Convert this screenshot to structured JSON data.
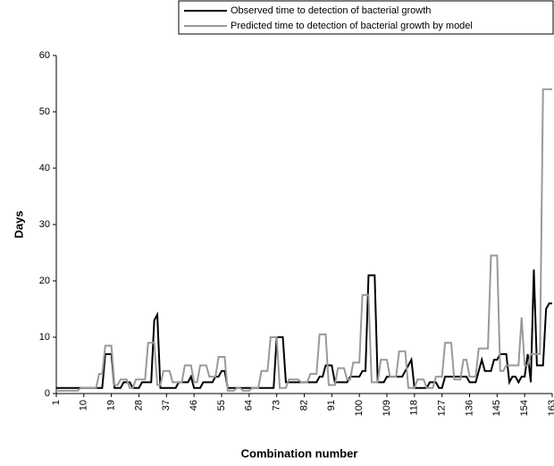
{
  "chart_data": {
    "type": "line",
    "y_label": "Days",
    "x_label": "Combination number",
    "x": [
      1,
      2,
      3,
      4,
      5,
      6,
      7,
      8,
      9,
      10,
      11,
      12,
      13,
      14,
      15,
      16,
      17,
      18,
      19,
      20,
      21,
      22,
      23,
      24,
      25,
      26,
      27,
      28,
      29,
      30,
      31,
      32,
      33,
      34,
      35,
      36,
      37,
      38,
      39,
      40,
      41,
      42,
      43,
      44,
      45,
      46,
      47,
      48,
      49,
      50,
      51,
      52,
      53,
      54,
      55,
      56,
      57,
      58,
      59,
      60,
      61,
      62,
      63,
      64,
      65,
      66,
      67,
      68,
      69,
      70,
      71,
      72,
      73,
      74,
      75,
      76,
      77,
      78,
      79,
      80,
      81,
      82,
      83,
      84,
      85,
      86,
      87,
      88,
      89,
      90,
      91,
      92,
      93,
      94,
      95,
      96,
      97,
      98,
      99,
      100,
      101,
      102,
      103,
      104,
      105,
      106,
      107,
      108,
      109,
      110,
      111,
      112,
      113,
      114,
      115,
      116,
      117,
      118,
      119,
      120,
      121,
      122,
      123,
      124,
      125,
      126,
      127,
      128,
      129,
      130,
      131,
      132,
      133,
      134,
      135,
      136,
      137,
      138,
      139,
      140,
      141,
      142,
      143,
      144,
      145,
      146,
      147,
      148,
      149,
      150,
      151,
      152,
      153,
      154,
      155,
      156,
      157,
      158,
      159,
      160,
      161,
      162,
      163
    ],
    "series": [
      {
        "name": "Observed time to detection of bacterial growth",
        "color": "#000000",
        "values": [
          1,
          1,
          1,
          1,
          1,
          1,
          1,
          1,
          1,
          1,
          1,
          1,
          1,
          1,
          1,
          1,
          7,
          7,
          7,
          1,
          1,
          1,
          2,
          2,
          2,
          1,
          1,
          1,
          2,
          2,
          2,
          2,
          13,
          14,
          1,
          1,
          1,
          1,
          1,
          1,
          2,
          2,
          2,
          2,
          3,
          1,
          1,
          1,
          2,
          2,
          2,
          2,
          3,
          3,
          4,
          4,
          1,
          1,
          1,
          1,
          1,
          1,
          1,
          1,
          1,
          1,
          1,
          1,
          1,
          1,
          1,
          1,
          10,
          10,
          10,
          2,
          2,
          2,
          2,
          2,
          2,
          2,
          2,
          2,
          2,
          2,
          3,
          3,
          5,
          5,
          5,
          2,
          2,
          2,
          2,
          2,
          3,
          3,
          3,
          3,
          4,
          4,
          21,
          21,
          21,
          2,
          2,
          2,
          3,
          3,
          3,
          3,
          3,
          3,
          4,
          5,
          6,
          1,
          1,
          1,
          1,
          1,
          2,
          2,
          2,
          1,
          1,
          3,
          3,
          3,
          3,
          3,
          3,
          3,
          3,
          2,
          2,
          2,
          4,
          6,
          4,
          4,
          4,
          6,
          6,
          7,
          7,
          7,
          2,
          3,
          3,
          2,
          3,
          3,
          7,
          2,
          22,
          5,
          5,
          5,
          15,
          16,
          16
        ]
      },
      {
        "name": "Predicted time to detection of bacterial growth by model",
        "color": "#999999",
        "values": [
          0.5,
          0.5,
          0.5,
          0.5,
          0.5,
          0.5,
          0.5,
          0.5,
          1,
          1,
          1,
          1,
          1,
          1,
          3.5,
          3.5,
          8.5,
          8.5,
          8.5,
          1.5,
          1.5,
          2.5,
          2.5,
          2.5,
          1,
          1,
          2.5,
          2.5,
          2.5,
          2.5,
          9,
          9,
          9,
          1.5,
          1.5,
          4,
          4,
          4,
          2,
          2,
          2,
          2,
          5,
          5,
          5,
          2,
          2,
          5,
          5,
          5,
          3,
          3,
          3,
          6.5,
          6.5,
          6.5,
          0.5,
          0.5,
          0.5,
          1,
          1,
          0.5,
          0.5,
          0.5,
          1,
          1,
          1,
          4,
          4,
          4,
          10,
          10,
          10,
          1,
          1,
          1,
          2.5,
          2.5,
          2.5,
          2.5,
          2,
          2,
          2,
          3.5,
          3.5,
          3.5,
          10.5,
          10.5,
          10.5,
          1.5,
          1.5,
          1.5,
          4.5,
          4.5,
          4.5,
          2.5,
          2.5,
          5.5,
          5.5,
          5.5,
          17.5,
          17.5,
          17.5,
          2,
          2,
          2,
          6,
          6,
          6,
          3,
          3,
          3,
          7.5,
          7.5,
          7.5,
          1,
          1,
          1,
          2.5,
          2.5,
          2.5,
          1,
          1,
          1,
          3,
          3,
          3,
          9,
          9,
          9,
          2.5,
          2.5,
          2.5,
          6,
          6,
          3,
          3,
          3,
          8,
          8,
          8,
          8,
          24.5,
          24.5,
          24.5,
          4,
          4,
          5,
          5,
          5,
          5,
          5,
          13.5,
          5,
          5,
          7,
          7,
          7,
          7,
          54,
          54,
          54,
          54
        ]
      }
    ],
    "xlim": [
      1,
      163
    ],
    "xticks": [
      1,
      10,
      19,
      28,
      37,
      46,
      55,
      64,
      73,
      82,
      91,
      100,
      109,
      118,
      127,
      136,
      145,
      154,
      163
    ],
    "ylim": [
      0,
      60
    ],
    "yticks": [
      0,
      10,
      20,
      30,
      40,
      50,
      60
    ]
  }
}
